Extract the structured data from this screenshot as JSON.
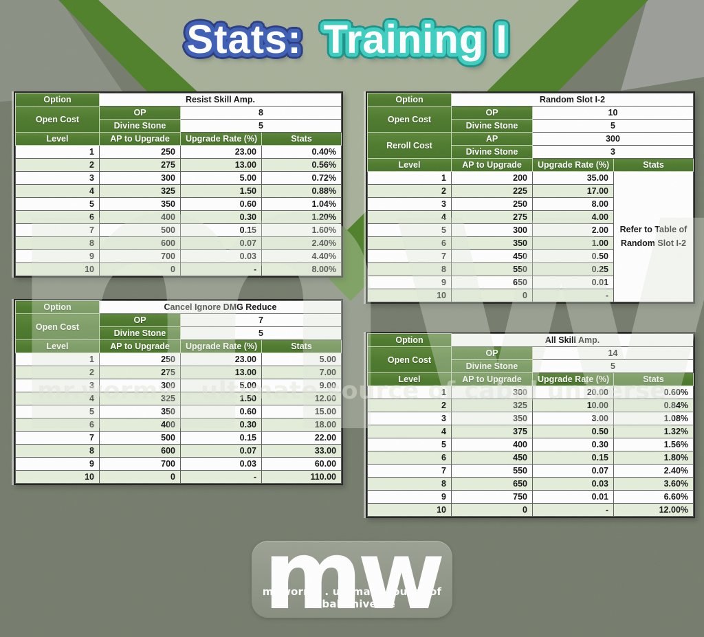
{
  "title": {
    "part1": "Stats:",
    "part2": "Training I"
  },
  "labels": {
    "option": "Option",
    "open_cost": "Open Cost",
    "reroll_cost": "Reroll Cost",
    "op": "OP",
    "divine_stone": "Divine Stone",
    "ap": "AP",
    "columns": [
      "Level",
      "AP to Upgrade",
      "Upgrade Rate (%)",
      "Stats"
    ]
  },
  "tables": [
    {
      "name": "Resist Skill Amp.",
      "costs": [
        {
          "label": "Open Cost",
          "rows": [
            [
              "OP",
              "8"
            ],
            [
              "Divine Stone",
              "5"
            ]
          ]
        }
      ],
      "rows": [
        [
          "1",
          "250",
          "23.00",
          "0.40%"
        ],
        [
          "2",
          "275",
          "13.00",
          "0.56%"
        ],
        [
          "3",
          "300",
          "5.00",
          "0.72%"
        ],
        [
          "4",
          "325",
          "1.50",
          "0.88%"
        ],
        [
          "5",
          "350",
          "0.60",
          "1.04%"
        ],
        [
          "6",
          "400",
          "0.30",
          "1.20%"
        ],
        [
          "7",
          "500",
          "0.15",
          "1.60%"
        ],
        [
          "8",
          "600",
          "0.07",
          "2.40%"
        ],
        [
          "9",
          "700",
          "0.03",
          "4.40%"
        ],
        [
          "10",
          "0",
          "-",
          "8.00%"
        ]
      ]
    },
    {
      "name": "Random Slot I-2",
      "costs": [
        {
          "label": "Open Cost",
          "rows": [
            [
              "OP",
              "10"
            ],
            [
              "Divine Stone",
              "5"
            ]
          ]
        },
        {
          "label": "Reroll Cost",
          "rows": [
            [
              "AP",
              "300"
            ],
            [
              "Divine Stone",
              "3"
            ]
          ]
        }
      ],
      "stats_note": [
        "Refer to Table of",
        "Random Slot I-2"
      ],
      "rows": [
        [
          "1",
          "200",
          "35.00"
        ],
        [
          "2",
          "225",
          "17.00"
        ],
        [
          "3",
          "250",
          "8.00"
        ],
        [
          "4",
          "275",
          "4.00"
        ],
        [
          "5",
          "300",
          "2.00"
        ],
        [
          "6",
          "350",
          "1.00"
        ],
        [
          "7",
          "450",
          "0.50"
        ],
        [
          "8",
          "550",
          "0.25"
        ],
        [
          "9",
          "650",
          "0.01"
        ],
        [
          "10",
          "0",
          "-"
        ]
      ]
    },
    {
      "name": "Cancel Ignore DMG Reduce",
      "costs": [
        {
          "label": "Open Cost",
          "rows": [
            [
              "OP",
              "7"
            ],
            [
              "Divine Stone",
              "5"
            ]
          ]
        }
      ],
      "rows": [
        [
          "1",
          "250",
          "23.00",
          "5.00"
        ],
        [
          "2",
          "275",
          "13.00",
          "7.00"
        ],
        [
          "3",
          "300",
          "5.00",
          "9.00"
        ],
        [
          "4",
          "325",
          "1.50",
          "12.00"
        ],
        [
          "5",
          "350",
          "0.60",
          "15.00"
        ],
        [
          "6",
          "400",
          "0.30",
          "18.00"
        ],
        [
          "7",
          "500",
          "0.15",
          "22.00"
        ],
        [
          "8",
          "600",
          "0.07",
          "33.00"
        ],
        [
          "9",
          "700",
          "0.03",
          "60.00"
        ],
        [
          "10",
          "0",
          "-",
          "110.00"
        ]
      ]
    },
    {
      "name": "All Skill Amp.",
      "costs": [
        {
          "label": "Open Cost",
          "rows": [
            [
              "OP",
              "14"
            ],
            [
              "Divine Stone",
              "5"
            ]
          ]
        }
      ],
      "rows": [
        [
          "1",
          "300",
          "20.00",
          "0.60%"
        ],
        [
          "2",
          "325",
          "10.00",
          "0.84%"
        ],
        [
          "3",
          "350",
          "3.00",
          "1.08%"
        ],
        [
          "4",
          "375",
          "0.50",
          "1.32%"
        ],
        [
          "5",
          "400",
          "0.30",
          "1.56%"
        ],
        [
          "6",
          "450",
          "0.15",
          "1.80%"
        ],
        [
          "7",
          "550",
          "0.07",
          "2.40%"
        ],
        [
          "8",
          "650",
          "0.03",
          "3.60%"
        ],
        [
          "9",
          "750",
          "0.01",
          "6.60%"
        ],
        [
          "10",
          "0",
          "-",
          "12.00%"
        ]
      ]
    }
  ],
  "watermark": {
    "logo": "mw",
    "tagline": "mr.wormy . ultimate source of cabal universe"
  },
  "footer": {
    "logo": "mw",
    "tagline": "mr.wormy . ultimate source of cabal universe"
  },
  "colors": {
    "header_green": "#4e7b2e",
    "row_alt_green": "#e4eeda",
    "stripe_green": "#4e8028",
    "bg_base": "#757c6c",
    "bg_light_triangle": "#a7b099",
    "title_blue_outline": "#3c5eb5",
    "title_blue_rim": "#293a7e",
    "title_teal_outline": "#3bcfc0",
    "title_teal_rim": "#1b9187"
  }
}
